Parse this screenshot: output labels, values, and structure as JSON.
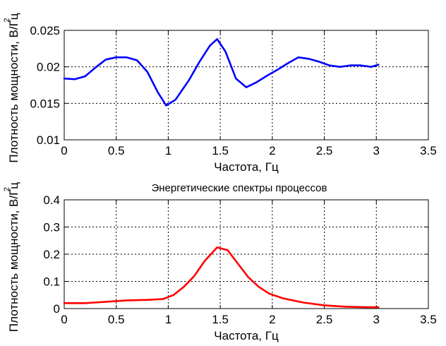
{
  "chart_data": [
    {
      "type": "line",
      "title": "",
      "xlabel": "Частота, Гц",
      "ylabel": "Плотность мощности, В/Гц",
      "ylabel_superscript": "2",
      "xlim": [
        0,
        3.5
      ],
      "ylim": [
        0.01,
        0.025
      ],
      "xticks": [
        0,
        0.5,
        1,
        1.5,
        2,
        2.5,
        3,
        3.5
      ],
      "xtick_labels": [
        "0",
        "0.5",
        "1",
        "1.5",
        "2",
        "2.5",
        "3",
        "3.5"
      ],
      "yticks": [
        0.01,
        0.015,
        0.02,
        0.025
      ],
      "ytick_labels": [
        "0.01",
        "0.015",
        "0.02",
        "0.025"
      ],
      "grid": true,
      "color": "#0000ff",
      "series": [
        {
          "x": [
            0,
            0.1,
            0.2,
            0.3,
            0.4,
            0.5,
            0.6,
            0.7,
            0.8,
            0.9,
            0.98,
            1.07,
            1.2,
            1.3,
            1.4,
            1.47,
            1.55,
            1.65,
            1.75,
            1.85,
            1.95,
            2.05,
            2.15,
            2.25,
            2.35,
            2.45,
            2.55,
            2.65,
            2.75,
            2.85,
            2.95,
            3.02
          ],
          "y": [
            0.0184,
            0.0183,
            0.0187,
            0.0199,
            0.021,
            0.0213,
            0.0213,
            0.0209,
            0.0193,
            0.0165,
            0.0147,
            0.0155,
            0.0182,
            0.0207,
            0.0229,
            0.0238,
            0.0221,
            0.0184,
            0.0172,
            0.0179,
            0.0188,
            0.0196,
            0.0205,
            0.0213,
            0.0211,
            0.0207,
            0.0202,
            0.02,
            0.0202,
            0.0202,
            0.02,
            0.0203
          ]
        }
      ]
    },
    {
      "type": "line",
      "title": "Энергетические спектры процессов",
      "xlabel": "Частота, Гц",
      "ylabel": "Плотность мощности, В/Гц",
      "ylabel_superscript": "2",
      "xlim": [
        0,
        3.5
      ],
      "ylim": [
        0,
        0.4
      ],
      "xticks": [
        0,
        0.5,
        1,
        1.5,
        2,
        2.5,
        3,
        3.5
      ],
      "xtick_labels": [
        "0",
        "0.5",
        "1",
        "1.5",
        "2",
        "2.5",
        "3",
        "3.5"
      ],
      "yticks": [
        0,
        0.1,
        0.2,
        0.3,
        0.4
      ],
      "ytick_labels": [
        "0",
        "0.1",
        "0.2",
        "0.3",
        "0.4"
      ],
      "grid": true,
      "color": "#ff0000",
      "series": [
        {
          "x": [
            0,
            0.2,
            0.4,
            0.6,
            0.8,
            0.95,
            1.05,
            1.15,
            1.25,
            1.35,
            1.47,
            1.57,
            1.67,
            1.77,
            1.87,
            1.97,
            2.1,
            2.3,
            2.5,
            2.7,
            2.9,
            3.02
          ],
          "y": [
            0.02,
            0.02,
            0.025,
            0.03,
            0.032,
            0.035,
            0.05,
            0.08,
            0.12,
            0.175,
            0.225,
            0.215,
            0.165,
            0.115,
            0.08,
            0.055,
            0.038,
            0.022,
            0.012,
            0.007,
            0.005,
            0.005
          ]
        }
      ]
    }
  ]
}
